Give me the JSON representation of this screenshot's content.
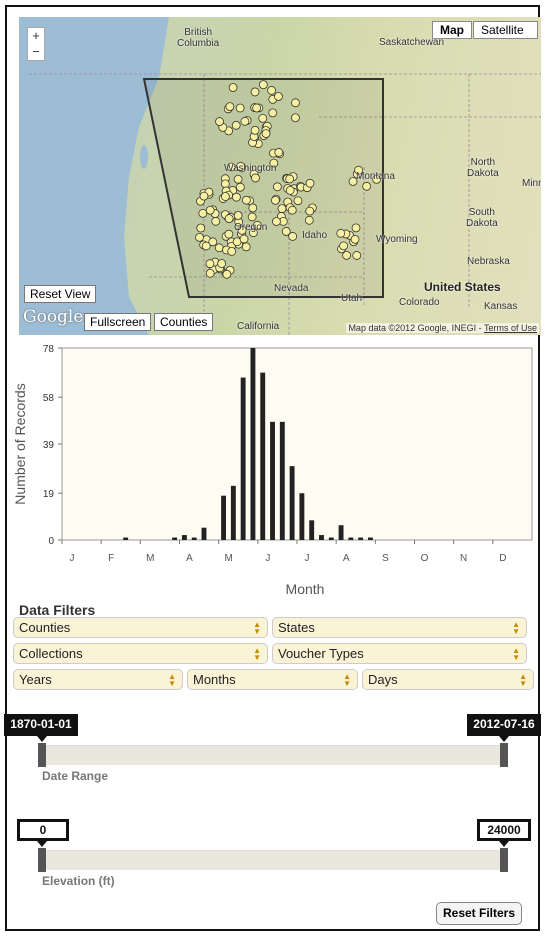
{
  "map": {
    "zoom_in": "+",
    "zoom_out": "−",
    "maptype_map": "Map",
    "maptype_satellite": "Satellite",
    "reset_view": "Reset View",
    "fullscreen": "Fullscreen",
    "counties": "Counties",
    "google_logo": "Google",
    "attribution": "Map data ©2012 Google, INEGI - ",
    "terms": "Terms of Use",
    "labels": [
      {
        "text": "British\nColumbia",
        "big": false
      },
      {
        "text": "Saskatchewan",
        "big": false
      },
      {
        "text": "Washington",
        "big": false
      },
      {
        "text": "Montana",
        "big": false
      },
      {
        "text": "North\nDakota",
        "big": false
      },
      {
        "text": "Minn",
        "big": false
      },
      {
        "text": "Oregon",
        "big": false
      },
      {
        "text": "Idaho",
        "big": false
      },
      {
        "text": "South\nDakota",
        "big": false
      },
      {
        "text": "Wyoming",
        "big": false
      },
      {
        "text": "Nebraska",
        "big": false
      },
      {
        "text": "Nevada",
        "big": false
      },
      {
        "text": "United States",
        "big": true
      },
      {
        "text": "Utah",
        "big": false
      },
      {
        "text": "Colorado",
        "big": false
      },
      {
        "text": "Kansas",
        "big": false
      },
      {
        "text": "California",
        "big": false
      }
    ],
    "marker_color": "#f7f0a0"
  },
  "chart_data": {
    "type": "bar",
    "ylabel": "Number of Records",
    "xlabel": "Month",
    "yticks": [
      0,
      19,
      39,
      58,
      78
    ],
    "ylim": [
      0,
      78
    ],
    "month_labels": [
      "J",
      "F",
      "M",
      "A",
      "M",
      "J",
      "J",
      "A",
      "S",
      "O",
      "N",
      "D"
    ],
    "bins_per_month": 4,
    "values": [
      0,
      0,
      0,
      0,
      0,
      0,
      1,
      0,
      0,
      0,
      0,
      1,
      2,
      1,
      5,
      0,
      18,
      22,
      66,
      78,
      68,
      48,
      48,
      30,
      19,
      8,
      2,
      1,
      6,
      1,
      1,
      1,
      0,
      0,
      0,
      0,
      0,
      0,
      0,
      0,
      0,
      0,
      0,
      0,
      0,
      0,
      0,
      0
    ],
    "bar_color": "#222222",
    "plot_bg": "#fefcf2"
  },
  "filters": {
    "title": "Data Filters",
    "counties": "Counties",
    "states": "States",
    "collections": "Collections",
    "voucher_types": "Voucher Types",
    "years": "Years",
    "months": "Months",
    "days": "Days",
    "date_min": "1870-01-01",
    "date_max": "2012-07-16",
    "date_label": "Date Range",
    "elev_min": "0",
    "elev_max": "24000",
    "elev_label": "Elevation (ft)",
    "reset": "Reset Filters"
  }
}
